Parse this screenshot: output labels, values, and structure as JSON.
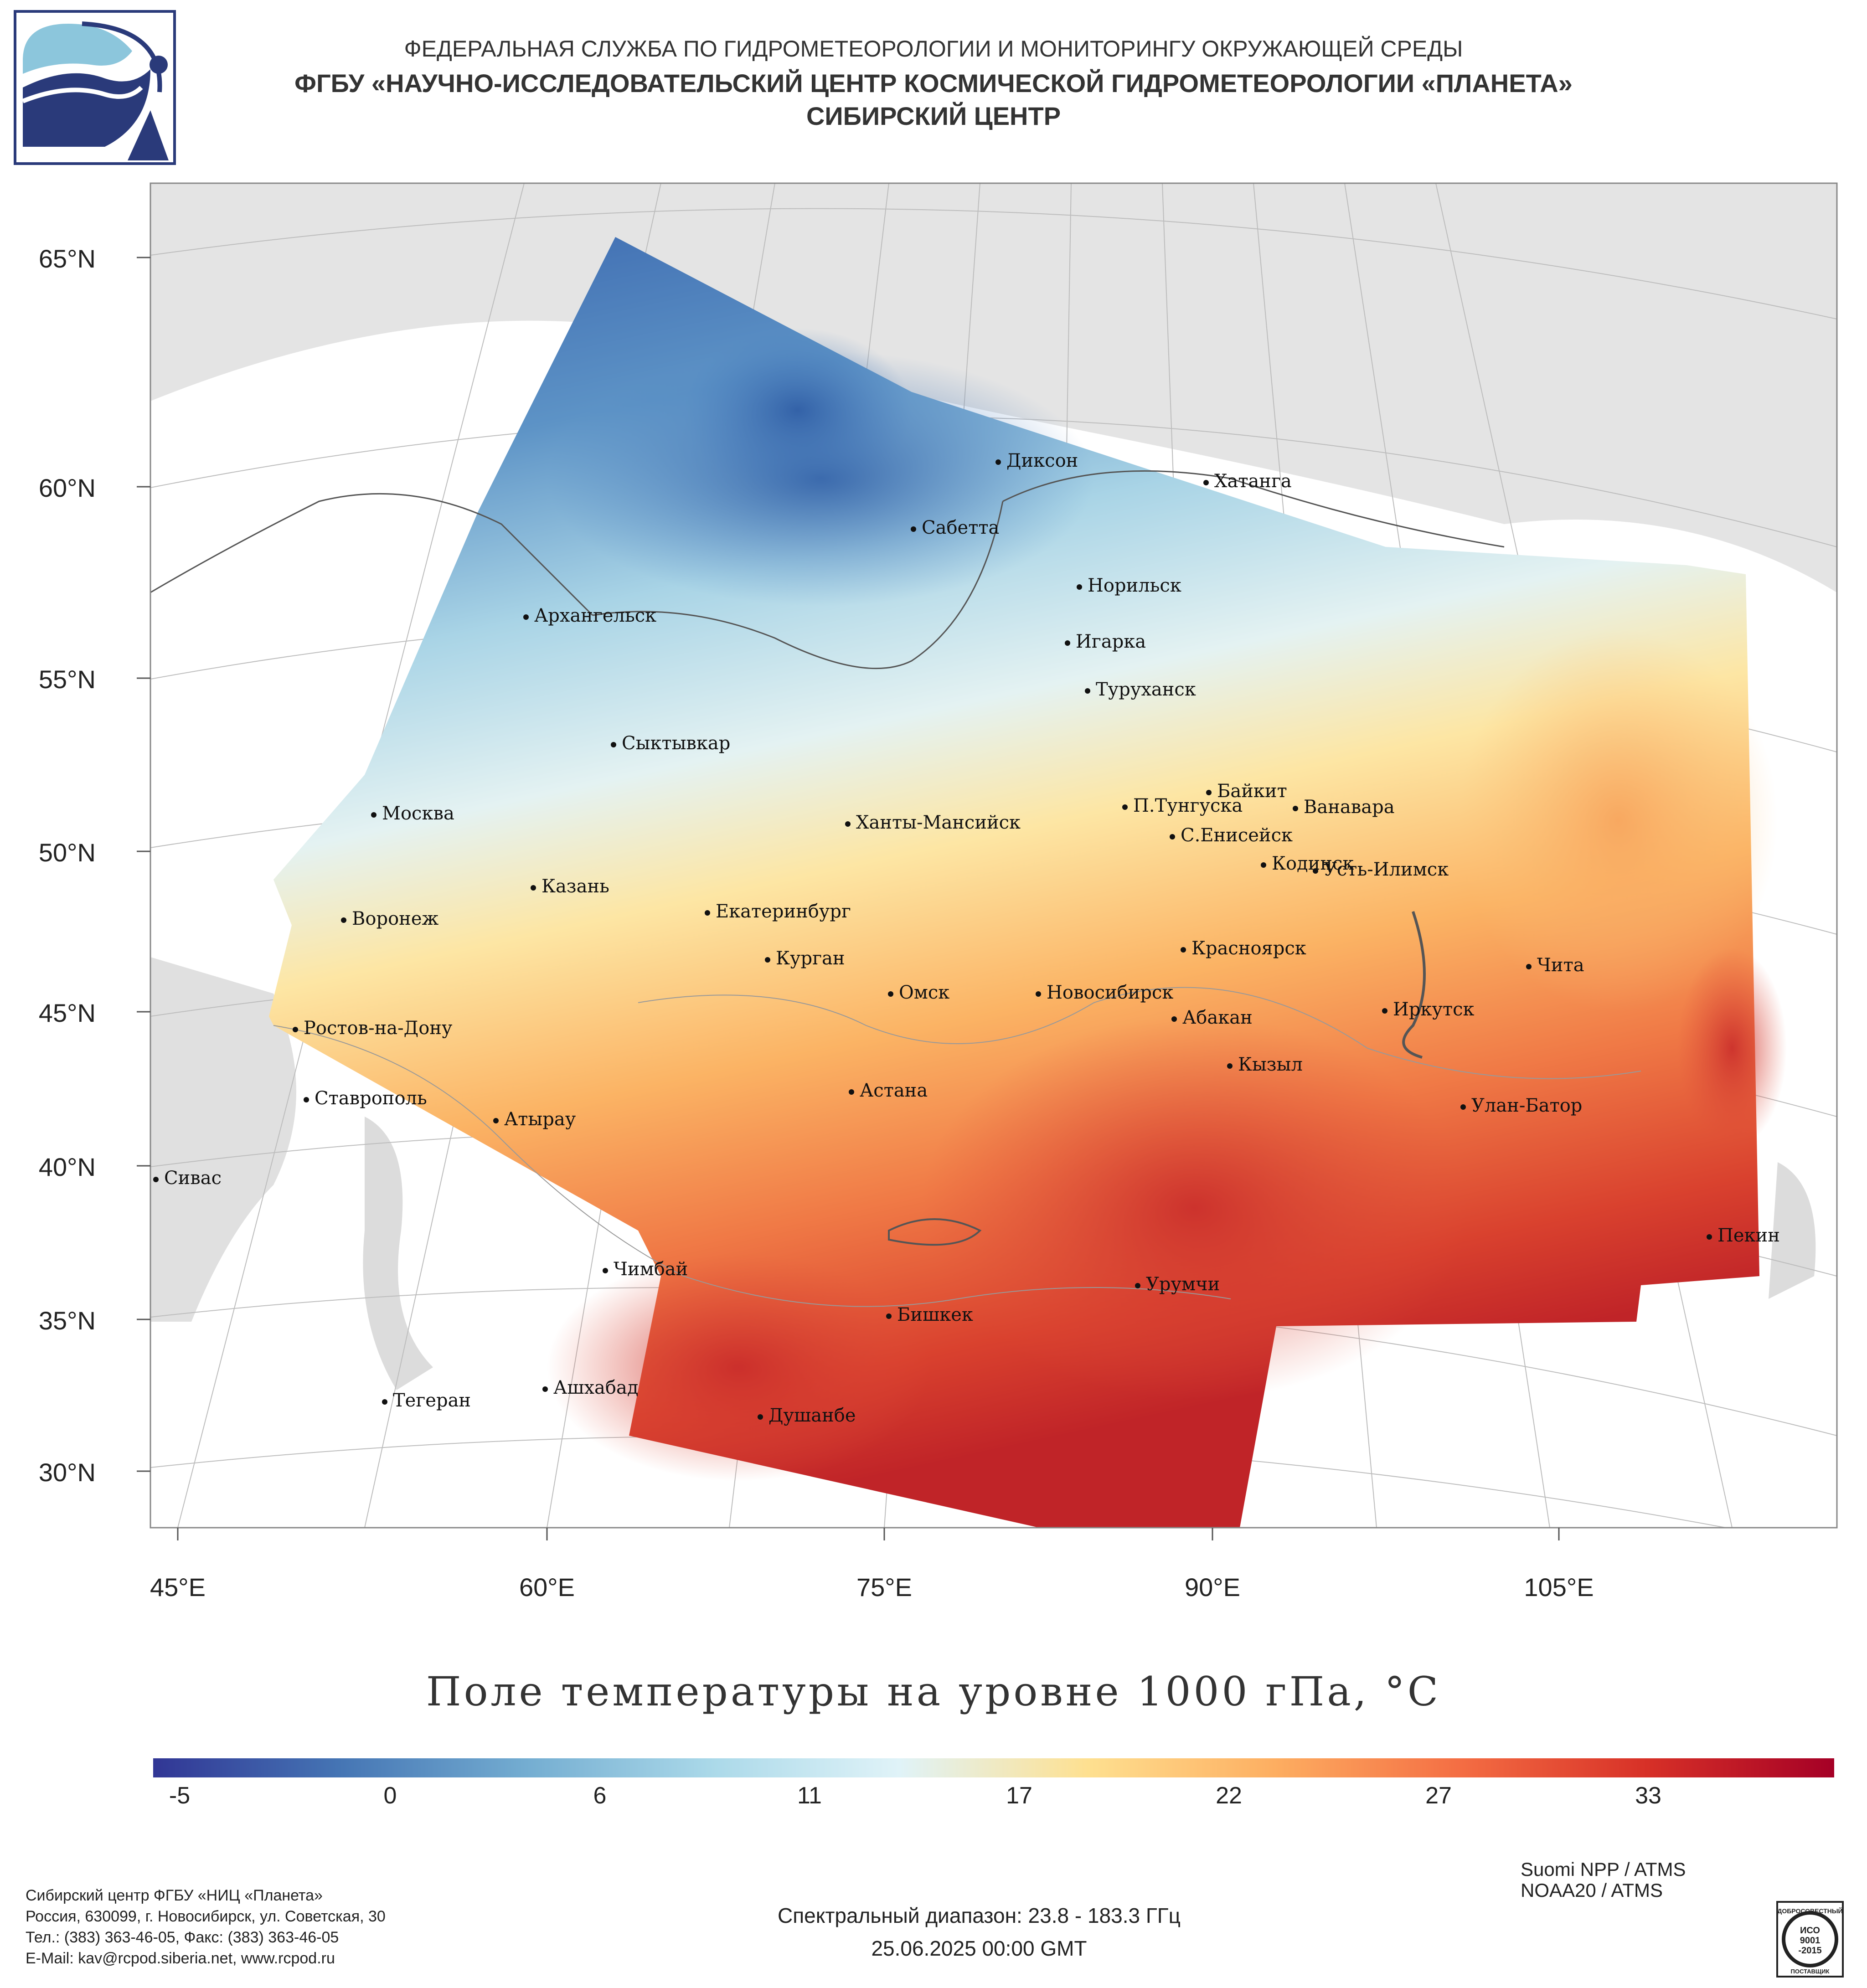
{
  "header": {
    "line1": "ФЕДЕРАЛЬНАЯ СЛУЖБА ПО ГИДРОМЕТЕОРОЛОГИИ И МОНИТОРИНГУ ОКРУЖАЮЩЕЙ СРЕДЫ",
    "line2": "ФГБУ «НАУЧНО-ИССЛЕДОВАТЕЛЬСКИЙ ЦЕНТР КОСМИЧЕСКОЙ ГИДРОМЕТЕОРОЛОГИИ «ПЛАНЕТА»",
    "line3": "СИБИРСКИЙ ЦЕНТР"
  },
  "map": {
    "lat_labels": [
      "65°N",
      "60°N",
      "55°N",
      "50°N",
      "45°N",
      "40°N",
      "35°N",
      "30°N"
    ],
    "lon_labels": [
      "45°E",
      "60°E",
      "75°E",
      "90°E",
      "105°E"
    ],
    "cities": [
      "Диксон",
      "Хатанга",
      "Сабетта",
      "Норильск",
      "Архангельск",
      "Игарка",
      "Туруханск",
      "Сыктывкар",
      "Байкит",
      "Москва",
      "П.Тунгуска",
      "Ванавара",
      "Ханты-Мансийск",
      "С.Енисейск",
      "Кодинск",
      "Усть-Илимск",
      "Казань",
      "Екатеринбург",
      "Воронеж",
      "Красноярск",
      "Курган",
      "Чита",
      "Омск",
      "Новосибирск",
      "Иркутск",
      "Абакан",
      "Ростов-на-Дону",
      "Кызыл",
      "Ставрополь",
      "Астана",
      "Улан-Батор",
      "Атырау",
      "Сивас",
      "Пекин",
      "Чимбай",
      "Урумчи",
      "Бишкек",
      "Ашхабад",
      "Тегеран",
      "Душанбе"
    ]
  },
  "title": "Поле температуры на уровне 1000 гПа, °C",
  "colorbar": {
    "ticks": [
      "-5",
      "0",
      "6",
      "11",
      "17",
      "22",
      "27",
      "33"
    ],
    "min": -8,
    "max": 40,
    "colors": [
      "#313695",
      "#4575b4",
      "#74add1",
      "#abd9e9",
      "#e0f3f8",
      "#fee090",
      "#fdae61",
      "#f46d43",
      "#d73027",
      "#a50026"
    ]
  },
  "footer": {
    "org_lines": [
      "Сибирский центр ФГБУ «НИЦ «Планета»",
      "Россия, 630099, г. Новосибирск, ул. Советская, 30",
      "Тел.: (383) 363-46-05, Факс: (383) 363-46-05",
      "E-Mail: kav@rcpod.siberia.net, www.rcpod.ru"
    ],
    "spectral": "Спектральный диапазон: 23.8 - 183.3 ГГц",
    "datetime": "25.06.2025 00:00 GMT",
    "satellites": [
      "Suomi NPP / ATMS",
      "NOAA20 / ATMS"
    ],
    "iso": {
      "top": "ДОБРОСОВЕСТНЫЙ",
      "mid1": "ИСО",
      "mid2": "9001",
      "mid3": "-2015",
      "bottom": "ПОСТАВЩИК"
    }
  }
}
